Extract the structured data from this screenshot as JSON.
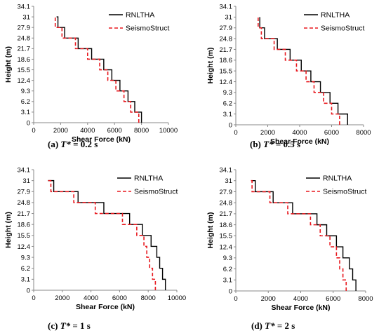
{
  "chart_data": [
    {
      "type": "line",
      "panel_label": "(a)",
      "caption_symbol": "T*",
      "caption_value": "= 0.2 s",
      "xlabel": "Shear Force (kN)",
      "ylabel": "Height (m)",
      "xlim": [
        0,
        10000
      ],
      "ylim": [
        0,
        34.1
      ],
      "x_ticks": [
        0,
        2000,
        4000,
        6000,
        8000,
        10000
      ],
      "x_tick_labels": [
        "0",
        "2000",
        "4000",
        "6000",
        "8000",
        "10000"
      ],
      "y_ticks": [
        0,
        3.1,
        6.2,
        9.3,
        12.4,
        15.5,
        18.6,
        21.7,
        24.8,
        27.9,
        31,
        34.1
      ],
      "y_tick_labels": [
        "0",
        "3.1",
        "6.2",
        "9.3",
        "12.4",
        "15.5",
        "18.6",
        "21.7",
        "24.8",
        "27.9",
        "31",
        "34.1"
      ],
      "legend_position": "top-right",
      "series": [
        {
          "name": "RNLTHA",
          "style": "solid",
          "color": "#000000",
          "values": [
            8000,
            7500,
            7000,
            6400,
            5800,
            5200,
            4300,
            3300,
            2300,
            1800,
            1700
          ]
        },
        {
          "name": "SeismoStruct",
          "style": "dashed",
          "color": "#e8191f",
          "values": [
            7800,
            7200,
            6700,
            6100,
            5500,
            4900,
            4000,
            3100,
            2100,
            1600,
            1600
          ]
        }
      ]
    },
    {
      "type": "line",
      "panel_label": "(b)",
      "caption_symbol": "T*",
      "caption_value": "= 0.5 s",
      "xlabel": "Shear Force (kN)",
      "ylabel": "Height (m)",
      "xlim": [
        0,
        8000
      ],
      "ylim": [
        0,
        34.1
      ],
      "x_ticks": [
        0,
        2000,
        4000,
        6000,
        8000
      ],
      "x_tick_labels": [
        "0",
        "2000",
        "4000",
        "6000",
        "8000"
      ],
      "y_ticks": [
        0,
        3.1,
        6.2,
        9.3,
        12.4,
        15.5,
        18.6,
        21.7,
        24.8,
        27.9,
        31,
        34.1
      ],
      "y_tick_labels": [
        "0",
        "3.1",
        "6.2",
        "9.3",
        "12.4",
        "15.5",
        "18.6",
        "21.7",
        "24.8",
        "27.9",
        "31",
        "34.1"
      ],
      "legend_position": "top-right",
      "series": [
        {
          "name": "RNLTHA",
          "style": "solid",
          "color": "#000000",
          "values": [
            7000,
            6400,
            5900,
            5300,
            4700,
            4100,
            3400,
            2600,
            1800,
            1500,
            1500
          ]
        },
        {
          "name": "SeismoStruct",
          "style": "dashed",
          "color": "#e8191f",
          "values": [
            6500,
            6000,
            5500,
            4900,
            4400,
            3800,
            3100,
            2400,
            1600,
            1400,
            1400
          ]
        }
      ]
    },
    {
      "type": "line",
      "panel_label": "(c)",
      "caption_symbol": "T*",
      "caption_value": "= 1 s",
      "xlabel": "Shear Force (kN)",
      "ylabel": "Height (m)",
      "xlim": [
        0,
        10000
      ],
      "ylim": [
        0,
        34.1
      ],
      "x_ticks": [
        0,
        2000,
        4000,
        6000,
        8000,
        10000
      ],
      "x_tick_labels": [
        "0",
        "2000",
        "4000",
        "6000",
        "8000",
        "10000"
      ],
      "y_ticks": [
        0,
        3.1,
        6.2,
        9.3,
        12.4,
        15.5,
        18.6,
        21.7,
        24.8,
        27.9,
        31,
        34.1
      ],
      "y_tick_labels": [
        "0",
        "3.1",
        "6.2",
        "9.3",
        "12.4",
        "15.5",
        "18.6",
        "21.7",
        "24.8",
        "27.9",
        "31",
        "34.1"
      ],
      "legend_position": "top-right",
      "series": [
        {
          "name": "RNLTHA",
          "style": "solid",
          "color": "#000000",
          "values": [
            9200,
            9000,
            8800,
            8600,
            8200,
            7600,
            6700,
            4900,
            3100,
            1400,
            1000
          ]
        },
        {
          "name": "SeismoStruct",
          "style": "dashed",
          "color": "#e8191f",
          "values": [
            8500,
            8300,
            8100,
            7900,
            7700,
            7200,
            6200,
            4300,
            2800,
            1200,
            900
          ]
        }
      ]
    },
    {
      "type": "line",
      "panel_label": "(d)",
      "caption_symbol": "T*",
      "caption_value": "= 2 s",
      "xlabel": "Shear Force (kN)",
      "ylabel": "Height (m)",
      "xlim": [
        0,
        8000
      ],
      "ylim": [
        0,
        34.1
      ],
      "x_ticks": [
        0,
        2000,
        4000,
        6000,
        8000
      ],
      "x_tick_labels": [
        "0",
        "2000",
        "4000",
        "6000",
        "8000"
      ],
      "y_ticks": [
        0,
        3.1,
        6.2,
        9.3,
        12.4,
        15.5,
        18.6,
        21.7,
        24.8,
        27.9,
        31,
        34.1
      ],
      "y_tick_labels": [
        "0",
        "3.1",
        "6.2",
        "9.3",
        "12.4",
        "15.5",
        "18.6",
        "21.7",
        "24.8",
        "27.9",
        "31",
        "34.1"
      ],
      "legend_position": "top-right",
      "series": [
        {
          "name": "RNLTHA",
          "style": "solid",
          "color": "#000000",
          "values": [
            7400,
            7200,
            7000,
            6600,
            6200,
            5600,
            5000,
            3500,
            2300,
            1200,
            1000
          ]
        },
        {
          "name": "SeismoStruct",
          "style": "dashed",
          "color": "#e8191f",
          "values": [
            6800,
            6600,
            6400,
            6200,
            5800,
            5200,
            4600,
            3200,
            2100,
            1000,
            900
          ]
        }
      ]
    }
  ]
}
